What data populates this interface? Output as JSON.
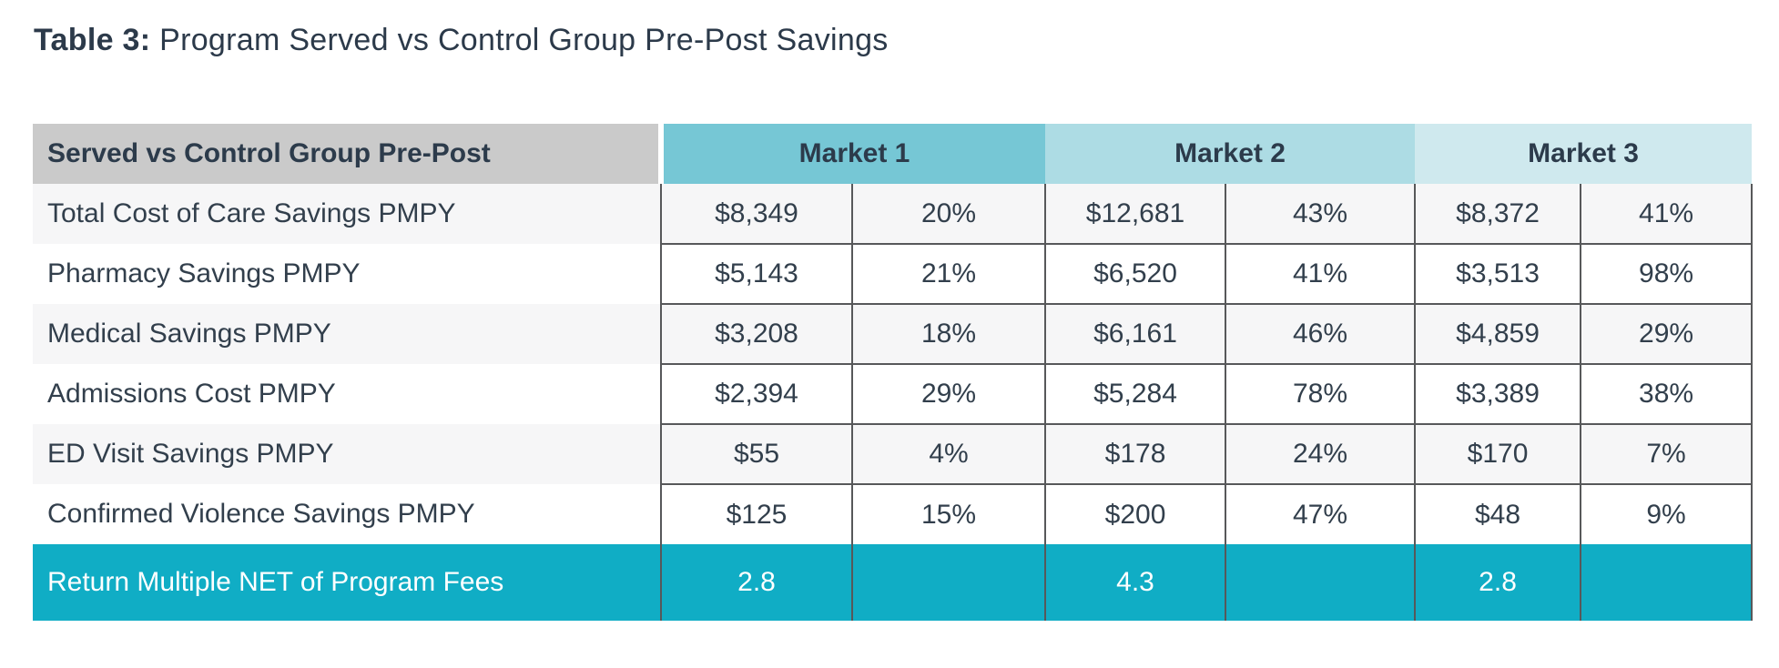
{
  "title": {
    "prefix": "Table 3:",
    "rest": " Program Served vs Control Group Pre-Post Savings"
  },
  "table": {
    "corner_header": "Served vs Control Group Pre-Post",
    "market_headers": [
      "Market 1",
      "Market 2",
      "Market 3"
    ],
    "rows": [
      {
        "label": "Total Cost of Care Savings PMPY",
        "values": [
          "$8,349",
          "20%",
          "$12,681",
          "43%",
          "$8,372",
          "41%"
        ]
      },
      {
        "label": "Pharmacy Savings PMPY",
        "values": [
          "$5,143",
          "21%",
          "$6,520",
          "41%",
          "$3,513",
          "98%"
        ]
      },
      {
        "label": "Medical Savings PMPY",
        "values": [
          "$3,208",
          "18%",
          "$6,161",
          "46%",
          "$4,859",
          "29%"
        ]
      },
      {
        "label": "Admissions Cost PMPY",
        "values": [
          "$2,394",
          "29%",
          "$5,284",
          "78%",
          "$3,389",
          "38%"
        ]
      },
      {
        "label": "ED Visit Savings PMPY",
        "values": [
          "$55",
          "4%",
          "$178",
          "24%",
          "$170",
          "7%"
        ]
      },
      {
        "label": "Confirmed Violence Savings PMPY",
        "values": [
          "$125",
          "15%",
          "$200",
          "47%",
          "$48",
          "9%"
        ]
      }
    ],
    "footer": {
      "label": "Return Multiple NET of Program Fees",
      "values": [
        "2.8",
        "",
        "4.3",
        "",
        "2.8",
        ""
      ]
    }
  },
  "chart_data": {
    "type": "table",
    "title": "Table 3: Program Served vs Control Group Pre-Post Savings",
    "columns": [
      "Served vs Control Group Pre-Post",
      "Market 1 $",
      "Market 1 %",
      "Market 2 $",
      "Market 2 %",
      "Market 3 $",
      "Market 3 %"
    ],
    "rows": [
      [
        "Total Cost of Care Savings PMPY",
        "$8,349",
        "20%",
        "$12,681",
        "43%",
        "$8,372",
        "41%"
      ],
      [
        "Pharmacy Savings PMPY",
        "$5,143",
        "21%",
        "$6,520",
        "41%",
        "$3,513",
        "98%"
      ],
      [
        "Medical Savings PMPY",
        "$3,208",
        "18%",
        "$6,161",
        "46%",
        "$4,859",
        "29%"
      ],
      [
        "Admissions Cost PMPY",
        "$2,394",
        "29%",
        "$5,284",
        "78%",
        "$3,389",
        "38%"
      ],
      [
        "ED Visit Savings PMPY",
        "$55",
        "4%",
        "$178",
        "24%",
        "$170",
        "7%"
      ],
      [
        "Confirmed Violence Savings PMPY",
        "$125",
        "15%",
        "$200",
        "47%",
        "$48",
        "9%"
      ],
      [
        "Return Multiple NET of Program Fees",
        "2.8",
        "",
        "4.3",
        "",
        "2.8",
        ""
      ]
    ]
  },
  "colors": {
    "title_text": "#2c3a4a",
    "corner_header_bg": "#cacaca",
    "market1_header_bg": "#76c7d5",
    "market2_header_bg": "#addce4",
    "market3_header_bg": "#cfe9ee",
    "header_text": "#2c3b4b",
    "row_alt_bg": "#f6f6f7",
    "row_bg": "#ffffff",
    "cell_text": "#323f4c",
    "cell_border": "#57585a",
    "footer_bg": "#10adc5",
    "footer_text": "#ffffff"
  }
}
